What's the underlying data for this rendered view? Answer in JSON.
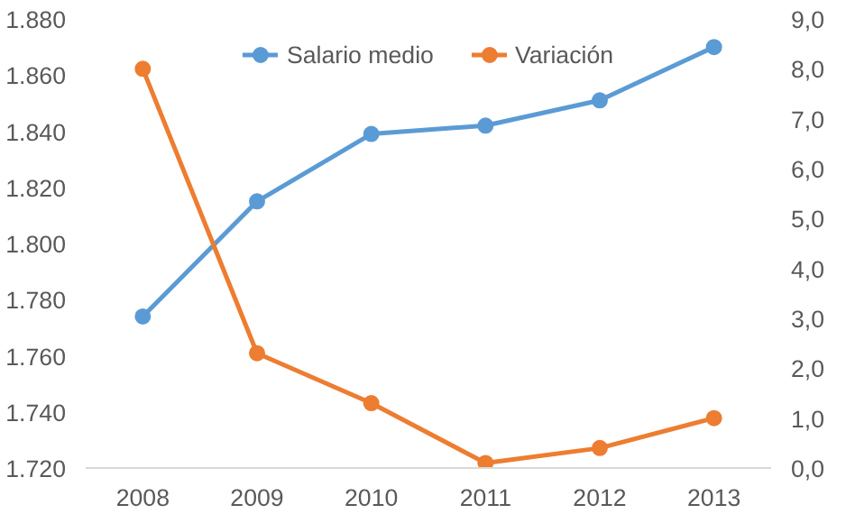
{
  "chart_data": {
    "type": "line",
    "categories": [
      "2008",
      "2009",
      "2010",
      "2011",
      "2012",
      "2013"
    ],
    "series": [
      {
        "name": "Salario medio",
        "color": "#5b9bd5",
        "values": [
          1774,
          1815,
          1839,
          1842,
          1851,
          1870
        ]
      },
      {
        "name": "Variación",
        "color": "#ed7d31",
        "axis": "y2",
        "values": [
          8.0,
          2.3,
          1.3,
          0.1,
          0.4,
          1.0
        ]
      }
    ],
    "ylim": [
      1720,
      1880
    ],
    "yticks": [
      {
        "value": 1720,
        "label": "1.720"
      },
      {
        "value": 1740,
        "label": "1.740"
      },
      {
        "value": 1760,
        "label": "1.760"
      },
      {
        "value": 1780,
        "label": "1.780"
      },
      {
        "value": 1800,
        "label": "1.800"
      },
      {
        "value": 1820,
        "label": "1.820"
      },
      {
        "value": 1840,
        "label": "1.840"
      },
      {
        "value": 1860,
        "label": "1.860"
      },
      {
        "value": 1880,
        "label": "1.880"
      }
    ],
    "y2lim": [
      0,
      9
    ],
    "y2ticks": [
      {
        "value": 0,
        "label": "0,0"
      },
      {
        "value": 1,
        "label": "1,0"
      },
      {
        "value": 2,
        "label": "2,0"
      },
      {
        "value": 3,
        "label": "3,0"
      },
      {
        "value": 4,
        "label": "4,0"
      },
      {
        "value": 5,
        "label": "5,0"
      },
      {
        "value": 6,
        "label": "6,0"
      },
      {
        "value": 7,
        "label": "7,0"
      },
      {
        "value": 8,
        "label": "8,0"
      },
      {
        "value": 9,
        "label": "9,0"
      }
    ],
    "legend": "top",
    "marker": "circle",
    "line_style": "solid",
    "grid": false
  }
}
